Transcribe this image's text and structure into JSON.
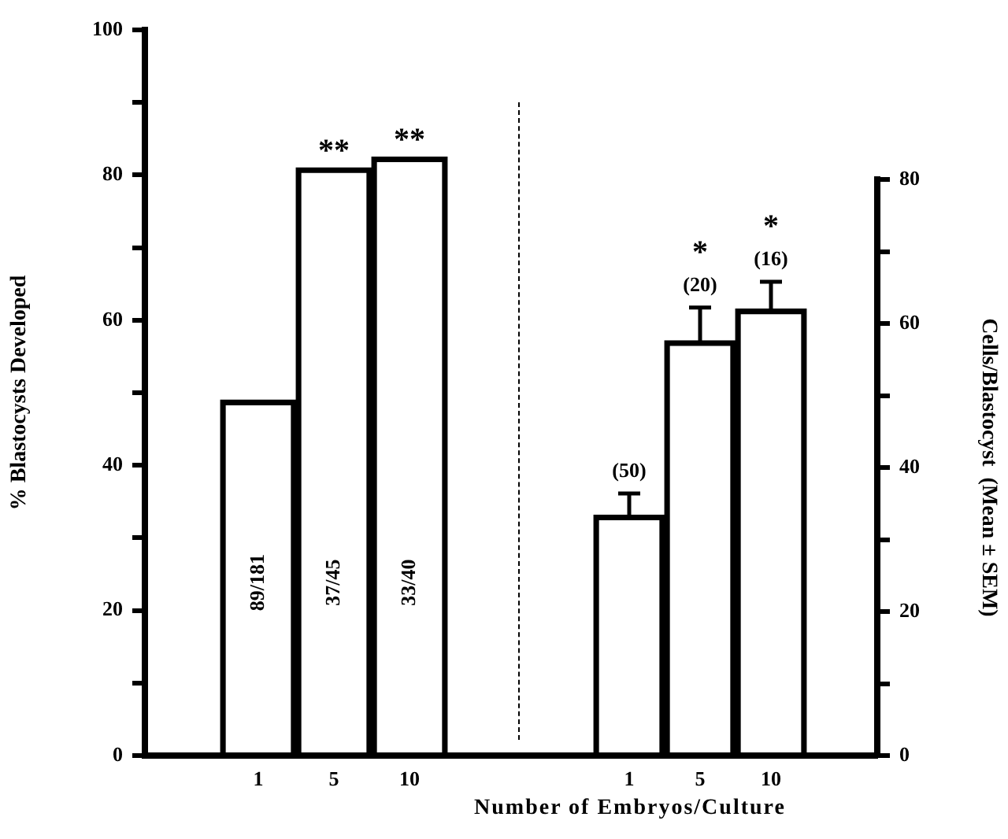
{
  "chart_data": [
    {
      "type": "bar",
      "xlabel": "Number of Embryos/Culture",
      "ylabel": "% Blastocysts Developed",
      "categories": [
        null,
        "1",
        "5",
        "10",
        null
      ],
      "series": [
        {
          "color": "#000000",
          "values": [
            null,
            49,
            81,
            82.5,
            null
          ],
          "value_labels": [
            null,
            "89/181",
            "37/45",
            "33/40",
            null
          ]
        }
      ],
      "ylim": [
        0,
        100
      ],
      "yticks": [
        0,
        {
          "value": 10,
          "label": null
        },
        20,
        {
          "value": 30,
          "label": null
        },
        40,
        {
          "value": 50,
          "label": null
        },
        60,
        {
          "value": 70,
          "label": null
        },
        80,
        {
          "value": 90,
          "label": null
        },
        100
      ],
      "annotations": [
        "**",
        "**"
      ]
    },
    {
      "type": "bar",
      "y2label": "Cells/Blastocyst  (Mean ± SEM)",
      "categories": [
        null,
        "1",
        "5",
        "10",
        null
      ],
      "series": [
        {
          "color": "#000000",
          "axis": "y2",
          "values": [
            null,
            33.4,
            57.6,
            62,
            null
          ],
          "errors": [
            null,
            3,
            4.6,
            3.8,
            null
          ]
        }
      ],
      "y2lim": [
        0,
        80
      ],
      "y2ticks": [
        0,
        {
          "value": 10,
          "label": null
        },
        20,
        {
          "value": 30,
          "label": null
        },
        40,
        {
          "value": 50,
          "label": null
        },
        60,
        {
          "value": 70,
          "label": null
        },
        80
      ],
      "annotations": [
        "(50)",
        "(20)",
        "(16)",
        "*",
        "*"
      ]
    }
  ]
}
